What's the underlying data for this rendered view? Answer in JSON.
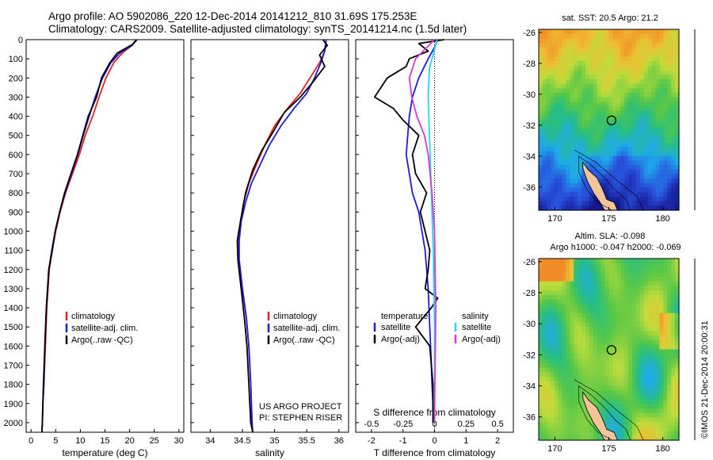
{
  "header": {
    "line1": "Argo profile: AO 5902086_220 12-Dec-2014 20141212_810 31.69S 175.253E",
    "line2": "Climatology: CARS2009. Satellite-adjusted climatology: synTS_20141214.nc (1.5d later)"
  },
  "credit": "©IMOS 21-Dec-2014 20:00:31",
  "colors": {
    "climatology": "#e52020",
    "satellite": "#1a1ae6",
    "argo": "#000000",
    "sat_sal": "#22d8e8",
    "argo_sal": "#d838d8"
  },
  "chart_data": [
    {
      "type": "line",
      "ylim": [
        2050,
        0
      ],
      "yticks": [
        0,
        100,
        200,
        300,
        400,
        500,
        600,
        700,
        800,
        900,
        1000,
        1100,
        1200,
        1300,
        1400,
        1500,
        1600,
        1700,
        1800,
        1900,
        2000
      ],
      "xlim": [
        -1,
        31
      ],
      "xticks": [
        "0",
        "5",
        "10",
        "15",
        "20",
        "25",
        "30"
      ],
      "xtick_values": [
        0,
        5,
        10,
        15,
        20,
        25,
        30
      ],
      "xlabel": "temperature (deg C)",
      "legend": [
        "climatology",
        "satellite-adj. clim.",
        "Argo(..raw -QC)"
      ],
      "series": [
        {
          "name": "climatology",
          "x": [
            21.5,
            20.5,
            18.5,
            16.8,
            15.2,
            13.8,
            12.5,
            11.0,
            9.8,
            8.4,
            7.0,
            5.9,
            5.0,
            4.3,
            3.7,
            3.2,
            2.9,
            2.6,
            2.4,
            2.3,
            2.2
          ],
          "y": [
            0,
            30,
            70,
            120,
            200,
            300,
            400,
            500,
            600,
            700,
            800,
            900,
            1000,
            1100,
            1200,
            1400,
            1600,
            1800,
            1900,
            2000,
            2050
          ]
        },
        {
          "name": "satellite-adj. clim.",
          "x": [
            21.5,
            20.5,
            18.0,
            16.2,
            14.5,
            13.0,
            11.8,
            10.6,
            9.5,
            8.2,
            6.9,
            5.8,
            4.9,
            4.2,
            3.6,
            3.1,
            2.8,
            2.6,
            2.4,
            2.3,
            2.2
          ],
          "y": [
            0,
            30,
            70,
            120,
            200,
            300,
            400,
            500,
            600,
            700,
            800,
            900,
            1000,
            1100,
            1200,
            1400,
            1600,
            1800,
            1900,
            2000,
            2050
          ]
        },
        {
          "name": "Argo(..raw -QC)",
          "x": [
            21.4,
            20.6,
            17.5,
            16.0,
            14.3,
            13.3,
            11.6,
            10.5,
            9.4,
            8.1,
            6.8,
            5.8,
            4.9,
            4.3,
            3.6,
            3.1,
            2.8,
            2.5,
            2.4,
            2.3,
            2.2
          ],
          "y": [
            0,
            25,
            70,
            120,
            200,
            300,
            400,
            500,
            600,
            700,
            800,
            900,
            1000,
            1100,
            1200,
            1400,
            1600,
            1800,
            1900,
            2000,
            2050
          ]
        }
      ]
    },
    {
      "type": "line",
      "ylim": [
        2050,
        0
      ],
      "xlim": [
        33.7,
        36.15
      ],
      "xticks": [
        "34",
        "34.5",
        "35",
        "35.5",
        "36"
      ],
      "xtick_values": [
        34,
        34.5,
        35,
        35.5,
        36
      ],
      "xlabel": "salinity",
      "legend": [
        "climatology",
        "satellite-adj. clim.",
        "Argo(..raw -QC)"
      ],
      "annotation": [
        "US ARGO PROJECT",
        "PI: STEPHEN RISER"
      ],
      "series": [
        {
          "name": "climatology",
          "x": [
            35.8,
            35.78,
            35.7,
            35.55,
            35.4,
            35.2,
            35.0,
            34.85,
            34.72,
            34.6,
            34.52,
            34.47,
            34.44,
            34.45,
            34.5,
            34.56,
            34.6,
            34.63,
            34.65,
            34.66
          ],
          "y": [
            0,
            60,
            120,
            200,
            280,
            360,
            450,
            550,
            650,
            750,
            850,
            950,
            1050,
            1150,
            1300,
            1450,
            1600,
            1800,
            2000,
            2050
          ]
        },
        {
          "name": "satellite-adj. clim.",
          "x": [
            35.8,
            35.78,
            35.72,
            35.62,
            35.5,
            35.3,
            35.1,
            34.92,
            34.78,
            34.64,
            34.55,
            34.48,
            34.45,
            34.45,
            34.5,
            34.56,
            34.6,
            34.63,
            34.65,
            34.66
          ],
          "y": [
            0,
            60,
            120,
            200,
            280,
            360,
            450,
            550,
            650,
            750,
            850,
            950,
            1050,
            1150,
            1300,
            1450,
            1600,
            1800,
            2000,
            2050
          ]
        },
        {
          "name": "Argo(..raw -QC)",
          "x": [
            35.75,
            35.82,
            35.7,
            35.78,
            35.6,
            35.4,
            35.15,
            34.98,
            34.8,
            34.66,
            34.55,
            34.47,
            34.42,
            34.43,
            34.48,
            34.53,
            34.57,
            34.6,
            34.63,
            34.66
          ],
          "y": [
            0,
            30,
            80,
            140,
            220,
            300,
            380,
            480,
            580,
            680,
            800,
            950,
            1050,
            1150,
            1300,
            1450,
            1600,
            1800,
            2000,
            2050
          ]
        }
      ]
    },
    {
      "type": "line",
      "ylim": [
        2050,
        0
      ],
      "xlim": [
        -2.5,
        2.5
      ],
      "xticks": [
        "-2",
        "-1",
        "0",
        "1",
        "2"
      ],
      "xtick_values": [
        -2,
        -1,
        0,
        1,
        2
      ],
      "xlabel": "T difference from climatology",
      "xlabel_top": "S difference from climatology",
      "sticks": [
        "-0.5",
        "-0.25",
        "0",
        "0.25",
        "0.5"
      ],
      "stick_values": [
        -0.5,
        -0.25,
        0,
        0.25,
        0.5
      ],
      "slim": [
        -0.625,
        0.625
      ],
      "legend_temperature": [
        "temperature",
        "satellite",
        "Argo(-adj)"
      ],
      "legend_salinity": [
        "salinity",
        "satellite",
        "Argo(-adj)"
      ],
      "series": [
        {
          "name": "T satellite",
          "x": [
            0.1,
            0.0,
            -0.2,
            -0.5,
            -0.7,
            -0.8,
            -0.85,
            -0.9,
            -0.8,
            -0.7,
            -0.5,
            -0.4,
            -0.3,
            -0.2,
            -0.15,
            -0.1,
            -0.08,
            -0.05,
            -0.03
          ],
          "y": [
            0,
            40,
            100,
            200,
            300,
            400,
            500,
            600,
            700,
            800,
            900,
            1000,
            1100,
            1300,
            1500,
            1700,
            1800,
            1900,
            2000
          ]
        },
        {
          "name": "T Argo(-adj)",
          "x": [
            0.3,
            -0.5,
            -0.2,
            -0.8,
            -0.9,
            -1.5,
            -1.9,
            -1.3,
            -1.0,
            -0.5,
            -0.7,
            -0.6,
            -0.25,
            -0.45,
            -0.3,
            -0.15,
            -0.2,
            -0.3,
            0.1,
            -0.1,
            -0.6,
            -0.15,
            -0.1,
            -0.05,
            -0.05
          ],
          "y": [
            0,
            20,
            60,
            100,
            140,
            200,
            300,
            360,
            420,
            500,
            600,
            700,
            800,
            900,
            1000,
            1100,
            1200,
            1300,
            1350,
            1400,
            1500,
            1600,
            1700,
            1800,
            2000
          ]
        },
        {
          "name": "S satellite",
          "x": [
            0.02,
            0.0,
            -0.04,
            -0.05,
            -0.04,
            -0.03,
            -0.02,
            -0.01,
            0.0,
            0.0
          ],
          "y": [
            0,
            50,
            150,
            300,
            500,
            700,
            900,
            1100,
            1500,
            2000
          ]
        },
        {
          "name": "S Argo(-adj)",
          "x": [
            0.0,
            -0.06,
            -0.15,
            -0.2,
            -0.18,
            -0.14,
            -0.08,
            -0.05,
            -0.02,
            0.0,
            0.01,
            0.0
          ],
          "y": [
            0,
            40,
            100,
            200,
            300,
            400,
            500,
            600,
            800,
            1000,
            1400,
            2000
          ]
        }
      ]
    },
    {
      "type": "heatmap",
      "title": "sat. SST: 20.5  Argo: 21.2",
      "xlim": [
        168.5,
        181.5
      ],
      "ylim": [
        -37.5,
        -25.8
      ],
      "xticks": [
        "170",
        "175",
        "180"
      ],
      "xtick_values": [
        170,
        175,
        180
      ],
      "yticks": [
        "-26",
        "-28",
        "-30",
        "-32",
        "-34",
        "-36"
      ],
      "ytick_values": [
        -26,
        -28,
        -30,
        -32,
        -34,
        -36
      ],
      "marker": [
        175.25,
        -31.69
      ]
    },
    {
      "type": "heatmap",
      "title": "Altim. SLA: -0.098",
      "subtitle": "Argo h1000: -0.047 h2000: -0.069",
      "xlim": [
        168.5,
        181.5
      ],
      "ylim": [
        -37.5,
        -25.8
      ],
      "xticks": [
        "170",
        "175",
        "180"
      ],
      "xtick_values": [
        170,
        175,
        180
      ],
      "yticks": [
        "-26",
        "-28",
        "-30",
        "-32",
        "-34",
        "-36"
      ],
      "ytick_values": [
        -26,
        -28,
        -30,
        -32,
        -34,
        -36
      ],
      "marker": [
        175.25,
        -31.69
      ]
    }
  ]
}
